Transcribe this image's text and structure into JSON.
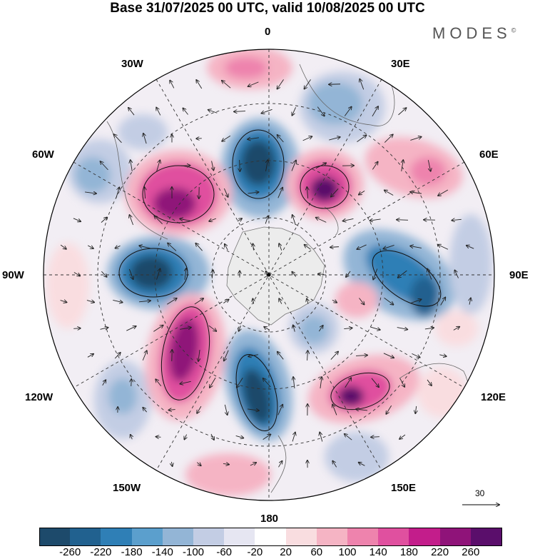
{
  "title": "Base 31/07/2025 00 UTC, valid 10/08/2025 00 UTC",
  "brand": "MODES",
  "brand_mark": "©",
  "map_labels": {
    "top": "0",
    "bottom": "180",
    "left": "90W",
    "right": "90E",
    "lon_30w": "30W",
    "lon_30e": "30E",
    "lon_60w": "60W",
    "lon_60e": "60E",
    "lon_120w": "120W",
    "lon_120e": "120E",
    "lon_150w": "150W",
    "lon_150e": "150E"
  },
  "reference_vector": "30",
  "colorbar": {
    "colors": [
      "#1d4a6b",
      "#21618f",
      "#2f7fb6",
      "#5b9fcd",
      "#93b5d6",
      "#c3cde4",
      "#e6e6f2",
      "#ffffff",
      "#f9dde0",
      "#f5b4c4",
      "#ee83ad",
      "#e0509f",
      "#c31d8b",
      "#8f1379",
      "#5a0e6b"
    ],
    "ticks": [
      "-260",
      "-220",
      "-180",
      "-140",
      "-100",
      "-60",
      "-20",
      "20",
      "60",
      "100",
      "140",
      "180",
      "220",
      "260"
    ]
  }
}
